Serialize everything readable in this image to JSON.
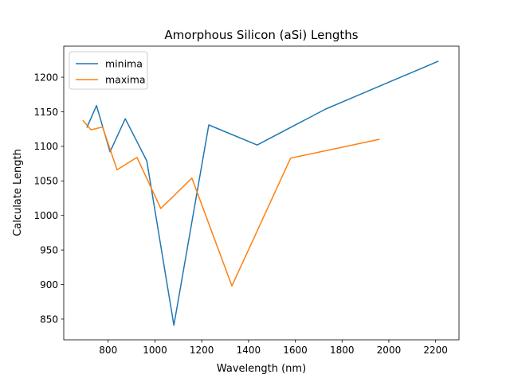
{
  "chart_data": {
    "type": "line",
    "title": "Amorphous Silicon (aSi) Lengths",
    "xlabel": "Wavelength (nm)",
    "ylabel": "Calculate Length",
    "xlim": [
      610,
      2300
    ],
    "ylim": [
      820,
      1245
    ],
    "xticks": [
      800,
      1000,
      1200,
      1400,
      1600,
      1800,
      2000,
      2200
    ],
    "yticks": [
      850,
      900,
      950,
      1000,
      1050,
      1100,
      1150,
      1200
    ],
    "grid": false,
    "legend_position": "top-left",
    "series": [
      {
        "name": "minima",
        "color": "#1f77b4",
        "points": [
          [
            710,
            1128
          ],
          [
            750,
            1159
          ],
          [
            808,
            1092
          ],
          [
            873,
            1140
          ],
          [
            965,
            1079
          ],
          [
            1081,
            841
          ],
          [
            1230,
            1131
          ],
          [
            1437,
            1102
          ],
          [
            1730,
            1154
          ],
          [
            2210,
            1223
          ]
        ]
      },
      {
        "name": "maxima",
        "color": "#ff7f0e",
        "points": [
          [
            693,
            1137
          ],
          [
            727,
            1124
          ],
          [
            776,
            1128
          ],
          [
            838,
            1066
          ],
          [
            923,
            1084
          ],
          [
            1025,
            1010
          ],
          [
            1158,
            1054
          ],
          [
            1329,
            898
          ],
          [
            1580,
            1083
          ],
          [
            1958,
            1110
          ]
        ]
      }
    ]
  }
}
